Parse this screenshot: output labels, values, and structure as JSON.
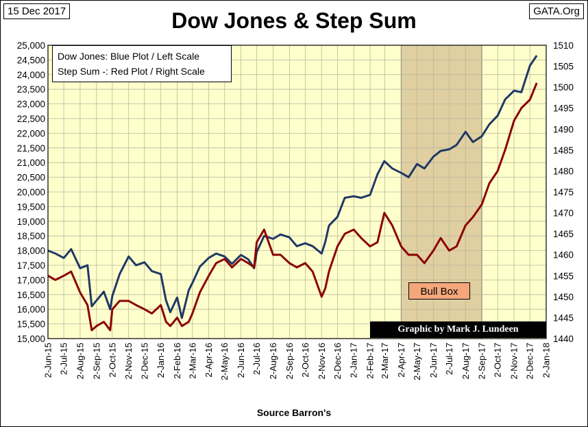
{
  "header": {
    "date": "15 Dec 2017",
    "site": "GATA.Org",
    "title": "Dow Jones & Step Sum"
  },
  "legend": {
    "line1": "Dow Jones: Blue Plot / Left Scale",
    "line2": "Step Sum -: Red Plot / Right Scale"
  },
  "annotations": {
    "bull_box": "Bull Box",
    "credit": "Graphic by Mark J. Lundeen"
  },
  "footer": {
    "source": "Source Barron's"
  },
  "colors": {
    "plot_bg": "#ffffcc",
    "dow_line": "#1f3864",
    "step_line": "#8b0000",
    "bull_box": "#e0cfa0",
    "bull_label": "#f5a77c"
  },
  "chart_data": {
    "type": "line",
    "x_tick_labels": [
      "2-Jun-15",
      "2-Jul-15",
      "2-Aug-15",
      "2-Sep-15",
      "2-Oct-15",
      "2-Nov-15",
      "2-Dec-15",
      "2-Jan-16",
      "2-Feb-16",
      "2-Mar-16",
      "2-Apr-16",
      "2-May-16",
      "2-Jun-16",
      "2-Jul-16",
      "2-Aug-16",
      "2-Sep-16",
      "2-Oct-16",
      "2-Nov-16",
      "2-Dec-16",
      "2-Jan-17",
      "2-Feb-17",
      "2-Mar-17",
      "2-Apr-17",
      "2-May-17",
      "2-Jun-17",
      "2-Jul-17",
      "2-Aug-17",
      "2-Sep-17",
      "2-Oct-17",
      "2-Nov-17",
      "2-Dec-17",
      "2-Jan-18"
    ],
    "xlim": [
      "2-Jun-15",
      "2-Jan-18"
    ],
    "y_left": {
      "min": 15000,
      "max": 25000,
      "step": 500
    },
    "y_right": {
      "min": 1440,
      "max": 1510,
      "step": 5
    },
    "grid": true,
    "bull_box_range": [
      "2-Apr-17",
      "2-Sep-17"
    ],
    "series": [
      {
        "name": "Dow Jones",
        "axis": "left",
        "values": [
          [
            "2-Jun-15",
            18000
          ],
          [
            "16-Jun-15",
            17900
          ],
          [
            "2-Jul-15",
            17750
          ],
          [
            "16-Jul-15",
            18050
          ],
          [
            "2-Aug-15",
            17400
          ],
          [
            "16-Aug-15",
            17500
          ],
          [
            "24-Aug-15",
            16100
          ],
          [
            "2-Sep-15",
            16300
          ],
          [
            "16-Sep-15",
            16600
          ],
          [
            "28-Sep-15",
            16000
          ],
          [
            "2-Oct-15",
            16450
          ],
          [
            "16-Oct-15",
            17200
          ],
          [
            "2-Nov-15",
            17800
          ],
          [
            "16-Nov-15",
            17500
          ],
          [
            "2-Dec-15",
            17600
          ],
          [
            "16-Dec-15",
            17300
          ],
          [
            "2-Jan-16",
            17200
          ],
          [
            "12-Jan-16",
            16300
          ],
          [
            "20-Jan-16",
            15900
          ],
          [
            "2-Feb-16",
            16400
          ],
          [
            "11-Feb-16",
            15700
          ],
          [
            "24-Feb-16",
            16650
          ],
          [
            "2-Mar-16",
            16900
          ],
          [
            "16-Mar-16",
            17450
          ],
          [
            "2-Apr-16",
            17750
          ],
          [
            "16-Apr-16",
            17900
          ],
          [
            "2-May-16",
            17800
          ],
          [
            "16-May-16",
            17550
          ],
          [
            "2-Jun-16",
            17850
          ],
          [
            "16-Jun-16",
            17700
          ],
          [
            "27-Jun-16",
            17400
          ],
          [
            "2-Jul-16",
            17950
          ],
          [
            "16-Jul-16",
            18500
          ],
          [
            "2-Aug-16",
            18400
          ],
          [
            "16-Aug-16",
            18550
          ],
          [
            "2-Sep-16",
            18450
          ],
          [
            "16-Sep-16",
            18150
          ],
          [
            "2-Oct-16",
            18250
          ],
          [
            "16-Oct-16",
            18150
          ],
          [
            "2-Nov-16",
            17900
          ],
          [
            "9-Nov-16",
            18300
          ],
          [
            "16-Nov-16",
            18850
          ],
          [
            "2-Dec-16",
            19150
          ],
          [
            "16-Dec-16",
            19800
          ],
          [
            "2-Jan-17",
            19850
          ],
          [
            "16-Jan-17",
            19800
          ],
          [
            "2-Feb-17",
            19900
          ],
          [
            "16-Feb-17",
            20600
          ],
          [
            "1-Mar-17",
            21050
          ],
          [
            "16-Mar-17",
            20800
          ],
          [
            "2-Apr-17",
            20650
          ],
          [
            "16-Apr-17",
            20500
          ],
          [
            "2-May-17",
            20950
          ],
          [
            "16-May-17",
            20800
          ],
          [
            "2-Jun-17",
            21200
          ],
          [
            "16-Jun-17",
            21400
          ],
          [
            "2-Jul-17",
            21450
          ],
          [
            "16-Jul-17",
            21600
          ],
          [
            "2-Aug-17",
            22050
          ],
          [
            "16-Aug-17",
            21700
          ],
          [
            "2-Sep-17",
            21900
          ],
          [
            "16-Sep-17",
            22300
          ],
          [
            "2-Oct-17",
            22600
          ],
          [
            "16-Oct-17",
            23150
          ],
          [
            "2-Nov-17",
            23450
          ],
          [
            "16-Nov-17",
            23400
          ],
          [
            "2-Dec-17",
            24300
          ],
          [
            "15-Dec-17",
            24650
          ]
        ]
      },
      {
        "name": "Step Sum",
        "axis": "right",
        "values": [
          [
            "2-Jun-15",
            1455
          ],
          [
            "16-Jun-15",
            1454
          ],
          [
            "2-Jul-15",
            1455
          ],
          [
            "16-Jul-15",
            1456
          ],
          [
            "2-Aug-15",
            1451
          ],
          [
            "16-Aug-15",
            1448
          ],
          [
            "24-Aug-15",
            1442
          ],
          [
            "2-Sep-15",
            1443
          ],
          [
            "16-Sep-15",
            1444
          ],
          [
            "28-Sep-15",
            1442
          ],
          [
            "2-Oct-15",
            1447
          ],
          [
            "16-Oct-15",
            1449
          ],
          [
            "2-Nov-15",
            1449
          ],
          [
            "16-Nov-15",
            1448
          ],
          [
            "2-Dec-15",
            1447
          ],
          [
            "16-Dec-15",
            1446
          ],
          [
            "2-Jan-16",
            1448
          ],
          [
            "12-Jan-16",
            1444
          ],
          [
            "20-Jan-16",
            1443
          ],
          [
            "2-Feb-16",
            1445
          ],
          [
            "11-Feb-16",
            1443
          ],
          [
            "24-Feb-16",
            1444
          ],
          [
            "2-Mar-16",
            1446
          ],
          [
            "16-Mar-16",
            1451
          ],
          [
            "2-Apr-16",
            1455
          ],
          [
            "16-Apr-16",
            1458
          ],
          [
            "2-May-16",
            1459
          ],
          [
            "16-May-16",
            1457
          ],
          [
            "2-Jun-16",
            1459
          ],
          [
            "16-Jun-16",
            1458
          ],
          [
            "27-Jun-16",
            1457
          ],
          [
            "2-Jul-16",
            1463
          ],
          [
            "16-Jul-16",
            1466
          ],
          [
            "2-Aug-16",
            1460
          ],
          [
            "16-Aug-16",
            1460
          ],
          [
            "2-Sep-16",
            1458
          ],
          [
            "16-Sep-16",
            1457
          ],
          [
            "2-Oct-16",
            1458
          ],
          [
            "16-Oct-16",
            1456
          ],
          [
            "2-Nov-16",
            1450
          ],
          [
            "9-Nov-16",
            1452
          ],
          [
            "16-Nov-16",
            1456
          ],
          [
            "2-Dec-16",
            1462
          ],
          [
            "16-Dec-16",
            1465
          ],
          [
            "2-Jan-17",
            1466
          ],
          [
            "16-Jan-17",
            1464
          ],
          [
            "2-Feb-17",
            1462
          ],
          [
            "16-Feb-17",
            1463
          ],
          [
            "1-Mar-17",
            1470
          ],
          [
            "16-Mar-17",
            1467
          ],
          [
            "2-Apr-17",
            1462
          ],
          [
            "16-Apr-17",
            1460
          ],
          [
            "2-May-17",
            1460
          ],
          [
            "16-May-17",
            1458
          ],
          [
            "2-Jun-17",
            1461
          ],
          [
            "16-Jun-17",
            1464
          ],
          [
            "2-Jul-17",
            1461
          ],
          [
            "16-Jul-17",
            1462
          ],
          [
            "2-Aug-17",
            1467
          ],
          [
            "16-Aug-17",
            1469
          ],
          [
            "2-Sep-17",
            1472
          ],
          [
            "16-Sep-17",
            1477
          ],
          [
            "2-Oct-17",
            1480
          ],
          [
            "16-Oct-17",
            1485
          ],
          [
            "2-Nov-17",
            1492
          ],
          [
            "16-Nov-17",
            1495
          ],
          [
            "2-Dec-17",
            1497
          ],
          [
            "15-Dec-17",
            1501
          ]
        ]
      }
    ]
  }
}
